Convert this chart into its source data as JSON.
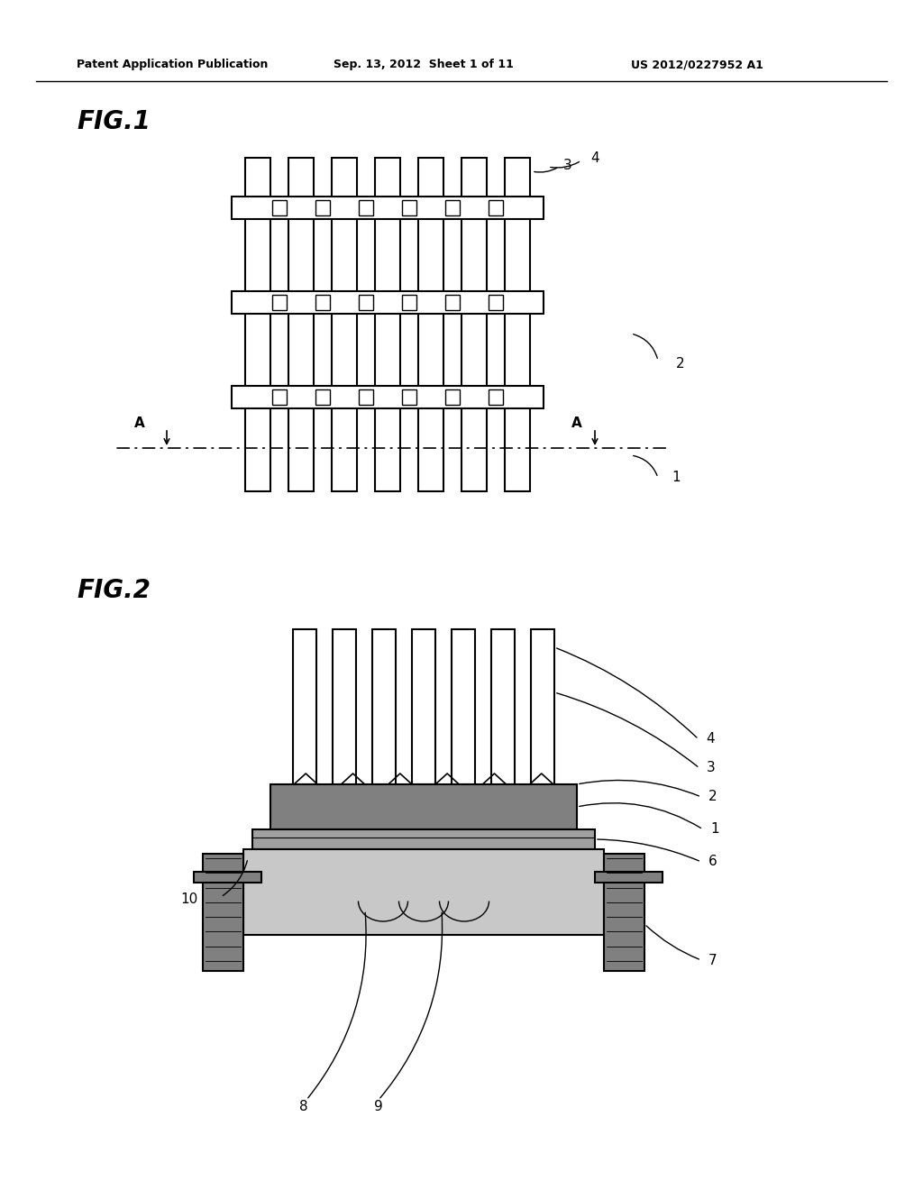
{
  "bg_color": "#ffffff",
  "header_text": "Patent Application Publication",
  "header_date": "Sep. 13, 2012  Sheet 1 of 11",
  "header_patent": "US 2012/0227952 A1",
  "fig1_label": "FIG.1",
  "fig2_label": "FIG.2",
  "line_color": "#000000",
  "gray_dark": "#808080",
  "gray_light": "#c8c8c8",
  "gray_med": "#a0a0a0",
  "white": "#ffffff"
}
